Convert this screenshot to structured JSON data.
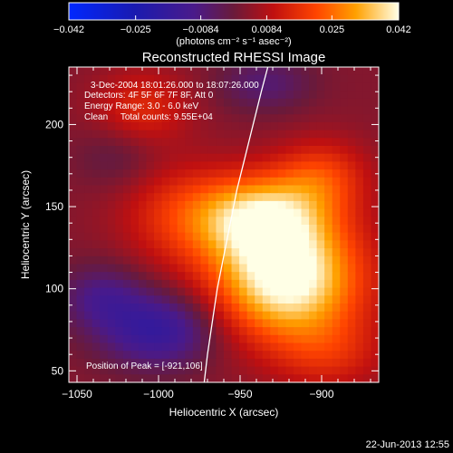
{
  "chart_data": {
    "type": "heatmap",
    "title": "Reconstructed RHESSI Image",
    "xlabel": "Heliocentric X (arcsec)",
    "ylabel": "Heliocentric Y (arcsec)",
    "xlim": [
      -1055,
      -865
    ],
    "ylim": [
      43,
      235
    ],
    "x_ticks": [
      {
        "value": -1050,
        "label": "−1050"
      },
      {
        "value": -1000,
        "label": "−1000"
      },
      {
        "value": -950,
        "label": "−950"
      },
      {
        "value": -900,
        "label": "−900"
      }
    ],
    "y_ticks": [
      {
        "value": 50,
        "label": "50"
      },
      {
        "value": 100,
        "label": "100"
      },
      {
        "value": 150,
        "label": "150"
      },
      {
        "value": 200,
        "label": "200"
      }
    ],
    "colorbar": {
      "range": [
        -0.042,
        0.042
      ],
      "ticks": [
        {
          "value": -0.042,
          "label": "−0.042"
        },
        {
          "value": -0.025,
          "label": "−0.025"
        },
        {
          "value": -0.0084,
          "label": "−0.0084"
        },
        {
          "value": 0.0084,
          "label": "0.0084"
        },
        {
          "value": 0.025,
          "label": "0.025"
        },
        {
          "value": 0.042,
          "label": "0.042"
        }
      ],
      "unit_label": "(photons cm⁻² s⁻¹ asec⁻²)"
    },
    "annotations": [
      "3-Dec-2004 18:01:26.000 to 18:07:26.000",
      "Detectors: 4F 5F 6F 7F 8F, Att 0",
      "Energy Range: 3.0 - 6.0 keV",
      "Clean     Total counts: 9.55E+04"
    ],
    "peak_label": "Position of Peak = [-921,106]",
    "peak": {
      "x": -921,
      "y": 106,
      "value": 0.042
    },
    "sources": [
      {
        "x": -921,
        "y": 106,
        "amp": 0.042,
        "sx": 32,
        "sy": 26
      },
      {
        "x": -938,
        "y": 144,
        "amp": 0.03,
        "sx": 28,
        "sy": 18
      },
      {
        "x": -900,
        "y": 168,
        "amp": 0.015,
        "sx": 20,
        "sy": 16
      },
      {
        "x": -988,
        "y": 145,
        "amp": 0.012,
        "sx": 26,
        "sy": 22
      },
      {
        "x": -1010,
        "y": 210,
        "amp": 0.012,
        "sx": 20,
        "sy": 16
      },
      {
        "x": -895,
        "y": 60,
        "amp": 0.01,
        "sx": 24,
        "sy": 16
      },
      {
        "x": -1025,
        "y": 180,
        "amp": -0.006,
        "sx": 18,
        "sy": 14
      },
      {
        "x": -1000,
        "y": 75,
        "amp": -0.02,
        "sx": 25,
        "sy": 16
      },
      {
        "x": -1035,
        "y": 95,
        "amp": -0.012,
        "sx": 18,
        "sy": 14
      },
      {
        "x": -935,
        "y": 225,
        "amp": -0.01,
        "sx": 20,
        "sy": 12
      }
    ],
    "limb_curve": [
      {
        "x": -972,
        "y": 43
      },
      {
        "x": -970,
        "y": 60
      },
      {
        "x": -967,
        "y": 80
      },
      {
        "x": -964,
        "y": 100
      },
      {
        "x": -960,
        "y": 120
      },
      {
        "x": -956,
        "y": 140
      },
      {
        "x": -952,
        "y": 160
      },
      {
        "x": -947,
        "y": 180
      },
      {
        "x": -942,
        "y": 200
      },
      {
        "x": -937,
        "y": 220
      },
      {
        "x": -933,
        "y": 235
      }
    ]
  },
  "footer": {
    "timestamp": "22-Jun-2013 12:55"
  }
}
